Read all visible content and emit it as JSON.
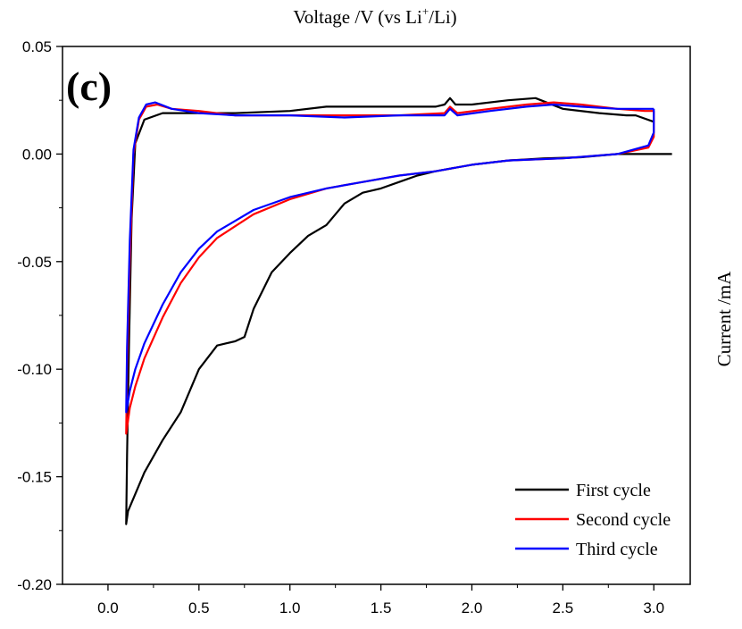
{
  "chart_data": {
    "type": "line",
    "panel_label": "(c)",
    "xlabel_main": "Voltage /V (vs Li",
    "xlabel_sup": "+",
    "xlabel_end": "/Li)",
    "ylabel": "Current /mA",
    "xlim": [
      -0.25,
      3.2
    ],
    "ylim": [
      -0.2,
      0.05
    ],
    "x_ticks": [
      0.0,
      0.5,
      1.0,
      1.5,
      2.0,
      2.5,
      3.0
    ],
    "x_tick_labels": [
      "0.0",
      "0.5",
      "1.0",
      "1.5",
      "2.0",
      "2.5",
      "3.0"
    ],
    "y_ticks": [
      0.05,
      0.0,
      -0.05,
      -0.1,
      -0.15,
      -0.2
    ],
    "y_tick_labels": [
      "0.05",
      "0.00",
      "-0.05",
      "-0.10",
      "-0.15",
      "-0.20"
    ],
    "grid": false,
    "legend_position": "bottom-right",
    "series": [
      {
        "name": "First cycle",
        "color": "#000000",
        "points": [
          [
            3.1,
            0.0
          ],
          [
            2.8,
            0.0
          ],
          [
            2.6,
            -0.0015
          ],
          [
            2.4,
            -0.002
          ],
          [
            2.2,
            -0.003
          ],
          [
            2.0,
            -0.005
          ],
          [
            1.8,
            -0.008
          ],
          [
            1.7,
            -0.01
          ],
          [
            1.6,
            -0.013
          ],
          [
            1.5,
            -0.016
          ],
          [
            1.4,
            -0.018
          ],
          [
            1.3,
            -0.023
          ],
          [
            1.2,
            -0.033
          ],
          [
            1.1,
            -0.038
          ],
          [
            1.0,
            -0.046
          ],
          [
            0.9,
            -0.055
          ],
          [
            0.8,
            -0.072
          ],
          [
            0.75,
            -0.085
          ],
          [
            0.7,
            -0.087
          ],
          [
            0.6,
            -0.089
          ],
          [
            0.5,
            -0.1
          ],
          [
            0.4,
            -0.12
          ],
          [
            0.3,
            -0.133
          ],
          [
            0.2,
            -0.148
          ],
          [
            0.15,
            -0.158
          ],
          [
            0.11,
            -0.166
          ],
          [
            0.1,
            -0.172
          ],
          [
            0.105,
            -0.14
          ],
          [
            0.115,
            -0.09
          ],
          [
            0.13,
            -0.03
          ],
          [
            0.15,
            0.005
          ],
          [
            0.2,
            0.016
          ],
          [
            0.3,
            0.019
          ],
          [
            0.5,
            0.019
          ],
          [
            0.7,
            0.019
          ],
          [
            1.0,
            0.02
          ],
          [
            1.2,
            0.022
          ],
          [
            1.5,
            0.022
          ],
          [
            1.8,
            0.022
          ],
          [
            1.85,
            0.023
          ],
          [
            1.88,
            0.026
          ],
          [
            1.91,
            0.023
          ],
          [
            2.0,
            0.023
          ],
          [
            2.2,
            0.025
          ],
          [
            2.35,
            0.026
          ],
          [
            2.5,
            0.021
          ],
          [
            2.7,
            0.019
          ],
          [
            2.85,
            0.018
          ],
          [
            2.9,
            0.018
          ],
          [
            3.0,
            0.015
          ]
        ]
      },
      {
        "name": "Second cycle",
        "color": "#ff0000",
        "points": [
          [
            3.0,
            0.02
          ],
          [
            3.0,
            0.008
          ],
          [
            2.97,
            0.003
          ],
          [
            2.8,
            0.0
          ],
          [
            2.5,
            -0.002
          ],
          [
            2.2,
            -0.003
          ],
          [
            2.0,
            -0.005
          ],
          [
            1.8,
            -0.008
          ],
          [
            1.6,
            -0.01
          ],
          [
            1.4,
            -0.013
          ],
          [
            1.2,
            -0.016
          ],
          [
            1.0,
            -0.021
          ],
          [
            0.8,
            -0.028
          ],
          [
            0.6,
            -0.039
          ],
          [
            0.5,
            -0.048
          ],
          [
            0.4,
            -0.06
          ],
          [
            0.3,
            -0.076
          ],
          [
            0.2,
            -0.095
          ],
          [
            0.15,
            -0.108
          ],
          [
            0.12,
            -0.118
          ],
          [
            0.1,
            -0.13
          ],
          [
            0.105,
            -0.1
          ],
          [
            0.12,
            -0.05
          ],
          [
            0.14,
            0.0
          ],
          [
            0.17,
            0.016
          ],
          [
            0.21,
            0.022
          ],
          [
            0.27,
            0.023
          ],
          [
            0.35,
            0.021
          ],
          [
            0.5,
            0.02
          ],
          [
            0.7,
            0.018
          ],
          [
            1.0,
            0.018
          ],
          [
            1.3,
            0.018
          ],
          [
            1.6,
            0.018
          ],
          [
            1.85,
            0.019
          ],
          [
            1.88,
            0.022
          ],
          [
            1.92,
            0.019
          ],
          [
            2.1,
            0.021
          ],
          [
            2.3,
            0.023
          ],
          [
            2.45,
            0.024
          ],
          [
            2.6,
            0.023
          ],
          [
            2.8,
            0.021
          ],
          [
            2.95,
            0.02
          ],
          [
            3.0,
            0.02
          ]
        ]
      },
      {
        "name": "Third cycle",
        "color": "#0000ff",
        "points": [
          [
            3.0,
            0.021
          ],
          [
            3.0,
            0.01
          ],
          [
            2.97,
            0.004
          ],
          [
            2.8,
            0.0
          ],
          [
            2.5,
            -0.002
          ],
          [
            2.2,
            -0.003
          ],
          [
            2.0,
            -0.005
          ],
          [
            1.8,
            -0.008
          ],
          [
            1.6,
            -0.01
          ],
          [
            1.4,
            -0.013
          ],
          [
            1.2,
            -0.016
          ],
          [
            1.0,
            -0.02
          ],
          [
            0.8,
            -0.026
          ],
          [
            0.6,
            -0.036
          ],
          [
            0.5,
            -0.044
          ],
          [
            0.4,
            -0.055
          ],
          [
            0.3,
            -0.07
          ],
          [
            0.2,
            -0.088
          ],
          [
            0.15,
            -0.1
          ],
          [
            0.12,
            -0.11
          ],
          [
            0.1,
            -0.12
          ],
          [
            0.105,
            -0.09
          ],
          [
            0.12,
            -0.04
          ],
          [
            0.14,
            0.002
          ],
          [
            0.17,
            0.017
          ],
          [
            0.21,
            0.023
          ],
          [
            0.26,
            0.024
          ],
          [
            0.35,
            0.021
          ],
          [
            0.5,
            0.019
          ],
          [
            0.7,
            0.018
          ],
          [
            1.0,
            0.018
          ],
          [
            1.3,
            0.017
          ],
          [
            1.6,
            0.018
          ],
          [
            1.85,
            0.018
          ],
          [
            1.88,
            0.021
          ],
          [
            1.92,
            0.018
          ],
          [
            2.1,
            0.02
          ],
          [
            2.3,
            0.022
          ],
          [
            2.45,
            0.023
          ],
          [
            2.6,
            0.022
          ],
          [
            2.8,
            0.021
          ],
          [
            2.95,
            0.021
          ],
          [
            3.0,
            0.021
          ]
        ]
      }
    ]
  }
}
